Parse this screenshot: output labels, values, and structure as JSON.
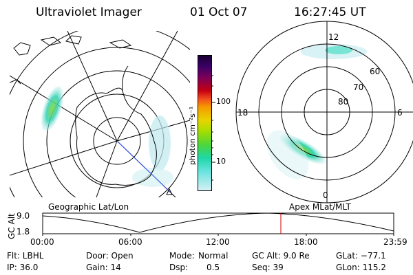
{
  "header": {
    "title": "Ultraviolet Imager",
    "date": "01 Oct 07",
    "time": "16:27:45 UT"
  },
  "colorbar": {
    "unit": "photon cm⁻²s⁻¹",
    "ticks": [
      "100",
      "10"
    ]
  },
  "left_map": {
    "label": "Geographic Lat/Lon"
  },
  "right_map": {
    "label": "Apex MLat/MLT",
    "mlt": {
      "top": "12",
      "left": "18",
      "right": "6",
      "bottom": "0"
    },
    "lat_labels": [
      "60",
      "70",
      "80"
    ]
  },
  "timeline": {
    "ylabel": "GC Alt",
    "ytick_top": "9.0",
    "ytick_bottom": "1.8",
    "xticks": [
      "00:00",
      "06:00",
      "12:00",
      "18:00",
      "23:59"
    ],
    "current_marker_color": "#cc0000"
  },
  "info": {
    "filter": "Flt: LBHL",
    "door": "Door: Open",
    "mode_label": "Mode:",
    "mode_value": "Normal",
    "gc_alt": "GC Alt: 9.0 Re",
    "glat": "GLat: −77.1",
    "ip": "IP: 36.0",
    "gain": "Gain: 14",
    "dsp_label": "Dsp:",
    "dsp_value": "0.5",
    "seq": "Seq: 39",
    "glon": "GLon: 115.2"
  }
}
